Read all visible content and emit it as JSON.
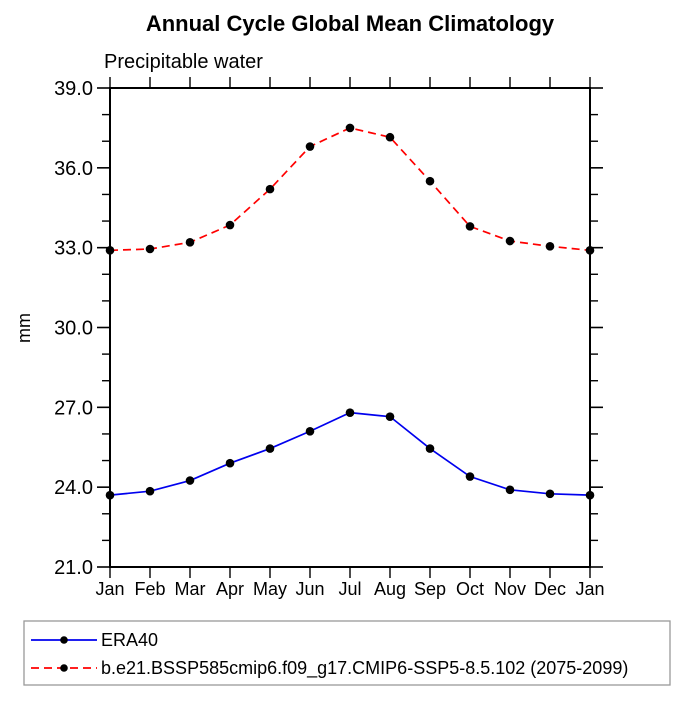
{
  "title": "Annual Cycle Global Mean Climatology",
  "chart_data": {
    "type": "line",
    "title": "Annual Cycle Global Mean Climatology",
    "subtitle": "Precipitable water",
    "xlabel": "",
    "ylabel": "mm",
    "categories": [
      "Jan",
      "Feb",
      "Mar",
      "Apr",
      "May",
      "Jun",
      "Jul",
      "Aug",
      "Sep",
      "Oct",
      "Nov",
      "Dec",
      "Jan"
    ],
    "ylim": [
      21.0,
      39.0
    ],
    "ytick_major": [
      21.0,
      24.0,
      27.0,
      30.0,
      33.0,
      36.0,
      39.0
    ],
    "ytick_minor_step": 1.0,
    "ytick_label_format": "one_decimal",
    "grid": false,
    "legend_position": "bottom-left-box",
    "series": [
      {
        "name": "ERA40",
        "color": "#0000ee",
        "line_style": "solid",
        "marker": "circle",
        "marker_color": "#000000",
        "values": [
          23.7,
          23.85,
          24.25,
          24.9,
          25.45,
          26.1,
          26.8,
          26.65,
          25.45,
          24.4,
          23.9,
          23.75,
          23.7
        ]
      },
      {
        "name": "b.e21.BSSP585cmip6.f09_g17.CMIP6-SSP5-8.5.102 (2075-2099)",
        "color": "#ff0000",
        "line_style": "dashed",
        "marker": "circle",
        "marker_color": "#000000",
        "values": [
          32.9,
          32.95,
          33.2,
          33.85,
          35.2,
          36.8,
          37.5,
          37.15,
          35.5,
          33.8,
          33.25,
          33.05,
          32.9
        ]
      }
    ],
    "colors": {
      "axis": "#000000",
      "background": "#ffffff",
      "legend_border": "#999999"
    }
  }
}
